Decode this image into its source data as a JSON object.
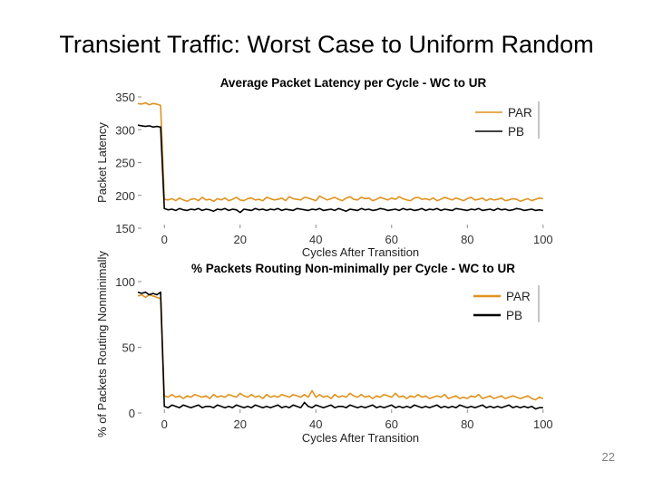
{
  "slide": {
    "title": "Transient Traffic: Worst Case to Uniform Random",
    "page_number": "22"
  },
  "colors": {
    "PAR": "#e0921e",
    "PB": "#000000",
    "axis": "#8c8c8c"
  },
  "chart_data": [
    {
      "type": "line",
      "title": "Average Packet Latency per Cycle - WC to UR",
      "xlabel": "Cycles After Transition",
      "ylabel": "Packet Latency",
      "xlim": [
        -7,
        101
      ],
      "ylim": [
        150,
        350
      ],
      "xticks": [
        0,
        20,
        40,
        60,
        80,
        100
      ],
      "yticks": [
        150,
        200,
        250,
        300,
        350
      ],
      "grid": false,
      "legend": "top-right",
      "series": [
        {
          "name": "PAR",
          "color": "#e0921e",
          "x": [
            -7,
            -6,
            -5,
            -4,
            -3,
            -2,
            -1,
            0,
            1,
            2,
            3,
            4,
            5,
            6,
            7,
            8,
            9,
            10,
            11,
            12,
            13,
            14,
            15,
            16,
            17,
            18,
            19,
            20,
            21,
            22,
            23,
            24,
            25,
            26,
            27,
            28,
            29,
            30,
            31,
            32,
            33,
            34,
            35,
            36,
            37,
            38,
            39,
            40,
            41,
            42,
            43,
            44,
            45,
            46,
            47,
            48,
            49,
            50,
            51,
            52,
            53,
            54,
            55,
            56,
            57,
            58,
            59,
            60,
            61,
            62,
            63,
            64,
            65,
            66,
            67,
            68,
            69,
            70,
            71,
            72,
            73,
            74,
            75,
            76,
            77,
            78,
            79,
            80,
            81,
            82,
            83,
            84,
            85,
            86,
            87,
            88,
            89,
            90,
            91,
            92,
            93,
            94,
            95,
            96,
            97,
            98,
            99,
            100
          ],
          "values": [
            340,
            339,
            341,
            338,
            340,
            339,
            337,
            194,
            193,
            195,
            192,
            196,
            193,
            191,
            194,
            195,
            192,
            197,
            193,
            194,
            191,
            195,
            193,
            196,
            192,
            194,
            197,
            193,
            192,
            195,
            196,
            193,
            194,
            192,
            197,
            195,
            193,
            194,
            196,
            192,
            198,
            195,
            194,
            193,
            197,
            196,
            194,
            192,
            199,
            196,
            193,
            195,
            197,
            194,
            192,
            196,
            198,
            194,
            193,
            197,
            195,
            196,
            192,
            194,
            197,
            195,
            193,
            196,
            194,
            198,
            195,
            193,
            192,
            196,
            197,
            194,
            195,
            193,
            196,
            192,
            194,
            197,
            195,
            193,
            196,
            194,
            192,
            195,
            197,
            193,
            194,
            196,
            192,
            195,
            193,
            194,
            196,
            192,
            193,
            195,
            194,
            191,
            193,
            195,
            192,
            194,
            196,
            195
          ]
        },
        {
          "name": "PB",
          "color": "#000000",
          "x": [
            -7,
            -6,
            -5,
            -4,
            -3,
            -2,
            -1,
            0,
            1,
            2,
            3,
            4,
            5,
            6,
            7,
            8,
            9,
            10,
            11,
            12,
            13,
            14,
            15,
            16,
            17,
            18,
            19,
            20,
            21,
            22,
            23,
            24,
            25,
            26,
            27,
            28,
            29,
            30,
            31,
            32,
            33,
            34,
            35,
            36,
            37,
            38,
            39,
            40,
            41,
            42,
            43,
            44,
            45,
            46,
            47,
            48,
            49,
            50,
            51,
            52,
            53,
            54,
            55,
            56,
            57,
            58,
            59,
            60,
            61,
            62,
            63,
            64,
            65,
            66,
            67,
            68,
            69,
            70,
            71,
            72,
            73,
            74,
            75,
            76,
            77,
            78,
            79,
            80,
            81,
            82,
            83,
            84,
            85,
            86,
            87,
            88,
            89,
            90,
            91,
            92,
            93,
            94,
            95,
            96,
            97,
            98,
            99,
            100
          ],
          "values": [
            307,
            306,
            305,
            306,
            304,
            305,
            304,
            180,
            178,
            179,
            177,
            180,
            178,
            177,
            179,
            178,
            180,
            177,
            179,
            178,
            176,
            179,
            178,
            180,
            177,
            179,
            178,
            174,
            179,
            178,
            177,
            180,
            178,
            179,
            177,
            179,
            178,
            180,
            177,
            179,
            178,
            177,
            180,
            179,
            178,
            177,
            179,
            178,
            180,
            177,
            178,
            179,
            177,
            180,
            178,
            176,
            179,
            178,
            177,
            180,
            178,
            179,
            177,
            178,
            180,
            179,
            177,
            178,
            179,
            177,
            180,
            178,
            179,
            177,
            178,
            180,
            177,
            179,
            178,
            180,
            177,
            179,
            178,
            177,
            180,
            179,
            178,
            177,
            179,
            178,
            180,
            177,
            178,
            179,
            177,
            180,
            178,
            179,
            177,
            178,
            180,
            179,
            177,
            178,
            179,
            177,
            178,
            177
          ]
        }
      ]
    },
    {
      "type": "line",
      "title": "% Packets Routing Non-minimally per Cycle - WC to UR",
      "xlabel": "Cycles After Transition",
      "ylabel": "% of Packets Routing Nonminimally",
      "xlim": [
        -7,
        101
      ],
      "ylim": [
        0,
        100
      ],
      "xticks": [
        0,
        20,
        40,
        60,
        80,
        100
      ],
      "yticks": [
        0,
        50,
        100
      ],
      "grid": false,
      "legend": "top-right",
      "series": [
        {
          "name": "PAR",
          "color": "#e0921e",
          "x": [
            -7,
            -6,
            -5,
            -4,
            -3,
            -2,
            -1,
            0,
            1,
            2,
            3,
            4,
            5,
            6,
            7,
            8,
            9,
            10,
            11,
            12,
            13,
            14,
            15,
            16,
            17,
            18,
            19,
            20,
            21,
            22,
            23,
            24,
            25,
            26,
            27,
            28,
            29,
            30,
            31,
            32,
            33,
            34,
            35,
            36,
            37,
            38,
            39,
            40,
            41,
            42,
            43,
            44,
            45,
            46,
            47,
            48,
            49,
            50,
            51,
            52,
            53,
            54,
            55,
            56,
            57,
            58,
            59,
            60,
            61,
            62,
            63,
            64,
            65,
            66,
            67,
            68,
            69,
            70,
            71,
            72,
            73,
            74,
            75,
            76,
            77,
            78,
            79,
            80,
            81,
            82,
            83,
            84,
            85,
            86,
            87,
            88,
            89,
            90,
            91,
            92,
            93,
            94,
            95,
            96,
            97,
            98,
            99,
            100
          ],
          "values": [
            89,
            90,
            88,
            90,
            89,
            88,
            87,
            13,
            12,
            14,
            12,
            13,
            11,
            13,
            12,
            14,
            13,
            12,
            13,
            11,
            14,
            12,
            13,
            12,
            14,
            13,
            12,
            15,
            13,
            12,
            14,
            12,
            13,
            11,
            14,
            12,
            13,
            12,
            14,
            13,
            12,
            14,
            13,
            12,
            14,
            12,
            17,
            12,
            14,
            12,
            13,
            11,
            14,
            12,
            13,
            12,
            15,
            13,
            12,
            14,
            12,
            13,
            11,
            13,
            12,
            14,
            13,
            12,
            15,
            12,
            13,
            11,
            13,
            12,
            14,
            12,
            13,
            11,
            12,
            13,
            12,
            14,
            11,
            12,
            13,
            11,
            12,
            11,
            13,
            12,
            14,
            11,
            12,
            13,
            11,
            12,
            13,
            11,
            12,
            13,
            12,
            11,
            12,
            13,
            11,
            10,
            12,
            11
          ]
        },
        {
          "name": "PB",
          "color": "#000000",
          "x": [
            -7,
            -6,
            -5,
            -4,
            -3,
            -2,
            -1,
            0,
            1,
            2,
            3,
            4,
            5,
            6,
            7,
            8,
            9,
            10,
            11,
            12,
            13,
            14,
            15,
            16,
            17,
            18,
            19,
            20,
            21,
            22,
            23,
            24,
            25,
            26,
            27,
            28,
            29,
            30,
            31,
            32,
            33,
            34,
            35,
            36,
            37,
            38,
            39,
            40,
            41,
            42,
            43,
            44,
            45,
            46,
            47,
            48,
            49,
            50,
            51,
            52,
            53,
            54,
            55,
            56,
            57,
            58,
            59,
            60,
            61,
            62,
            63,
            64,
            65,
            66,
            67,
            68,
            69,
            70,
            71,
            72,
            73,
            74,
            75,
            76,
            77,
            78,
            79,
            80,
            81,
            82,
            83,
            84,
            85,
            86,
            87,
            88,
            89,
            90,
            91,
            92,
            93,
            94,
            95,
            96,
            97,
            98,
            99,
            100
          ],
          "values": [
            92,
            91,
            92,
            90,
            91,
            90,
            92,
            5,
            4,
            6,
            5,
            4,
            6,
            5,
            4,
            5,
            6,
            4,
            5,
            5,
            4,
            6,
            5,
            4,
            5,
            4,
            6,
            5,
            4,
            5,
            4,
            6,
            5,
            4,
            5,
            4,
            5,
            6,
            4,
            5,
            4,
            6,
            5,
            4,
            8,
            5,
            4,
            6,
            5,
            4,
            5,
            6,
            4,
            5,
            5,
            4,
            6,
            5,
            4,
            5,
            4,
            5,
            6,
            4,
            5,
            4,
            5,
            6,
            4,
            5,
            4,
            5,
            4,
            6,
            5,
            4,
            5,
            4,
            5,
            6,
            4,
            5,
            4,
            5,
            4,
            6,
            5,
            4,
            5,
            4,
            5,
            6,
            4,
            5,
            4,
            5,
            4,
            5,
            6,
            4,
            5,
            4,
            5,
            4,
            5,
            3,
            4,
            4
          ]
        }
      ]
    }
  ]
}
